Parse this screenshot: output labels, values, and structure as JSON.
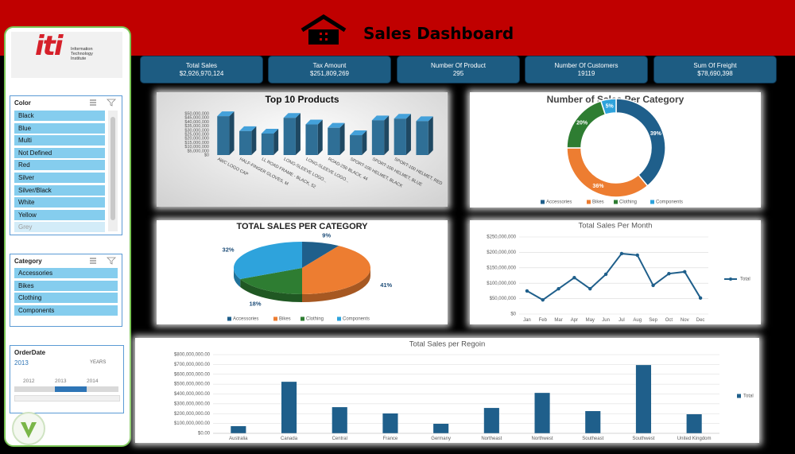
{
  "header": {
    "title": "Sales Dashboard"
  },
  "kpis": [
    {
      "label": "Total Sales",
      "value": "$2,926,970,124"
    },
    {
      "label": "Tax Amount",
      "value": "$251,809,269"
    },
    {
      "label": "Number Of Product",
      "value": "295"
    },
    {
      "label": "Number Of Customers",
      "value": "19119"
    },
    {
      "label": "Sum Of Freight",
      "value": "$78,690,398"
    }
  ],
  "logo": {
    "mark": "iti",
    "text": "Information Technology Institute"
  },
  "slicers": [
    {
      "title": "Color",
      "items": [
        "Black",
        "Blue",
        "Multi",
        "Not Defined",
        "Red",
        "Silver",
        "Silver/Black",
        "White",
        "Yellow",
        "Grey"
      ]
    },
    {
      "title": "Category",
      "items": [
        "Accessories",
        "Bikes",
        "Clothing",
        "Components"
      ]
    }
  ],
  "timeline": {
    "title": "OrderDate",
    "selected": "2013",
    "level": "YEARS",
    "years": [
      "2012",
      "2013",
      "2014"
    ]
  },
  "chart_data": [
    {
      "type": "bar",
      "title": "Top 10 Products",
      "categories": [
        "AWC LOGO CAP",
        "HALF-FINGER GLOVES, M",
        "LL ROAD FRAME - BLACK, 52",
        "LONG-SLEEVE LOGO...",
        "LONG-SLEEVE LOGO...",
        "ROAD-250 BLACK, 44",
        "SPORT-100 HELMET, BLACK",
        "SPORT-100 HELMET, BLUE",
        "SPORT-100 HELMET, RED",
        null
      ],
      "values": [
        47000000,
        29000000,
        26000000,
        45000000,
        37000000,
        33000000,
        24000000,
        42000000,
        44000000,
        41000000
      ],
      "color": "#2f6f96",
      "ylim": [
        0,
        50000000
      ],
      "yticks": [
        {
          "value": 0,
          "label": "$0"
        },
        {
          "value": 5000000,
          "label": "$5,000,000"
        },
        {
          "value": 10000000,
          "label": "$10,000,000"
        },
        {
          "value": 15000000,
          "label": "$15,000,000"
        },
        {
          "value": 20000000,
          "label": "$20,000,000"
        },
        {
          "value": 25000000,
          "label": "$25,000,000"
        },
        {
          "value": 30000000,
          "label": "$30,000,000"
        },
        {
          "value": 35000000,
          "label": "$35,000,000"
        },
        {
          "value": 40000000,
          "label": "$40,000,000"
        },
        {
          "value": 45000000,
          "label": "$45,000,000"
        },
        {
          "value": 50000000,
          "label": "$50,000,000"
        }
      ],
      "grid": false
    },
    {
      "type": "donut",
      "title": "Number of Sales Per Category",
      "categories": [
        "Accessories",
        "Bikes",
        "Clothing",
        "Components"
      ],
      "values": [
        39,
        36,
        20,
        5
      ],
      "value_labels": [
        "39%",
        "36%",
        "20%",
        "5%"
      ],
      "colors": [
        "#1f5f8b",
        "#ed7d31",
        "#2e7d32",
        "#2ea3dc"
      ],
      "legend": "bottom"
    },
    {
      "type": "pie",
      "title": "TOTAL SALES PER CATEGORY",
      "categories": [
        "Accessories",
        "Bikes",
        "Clothing",
        "Components"
      ],
      "values": [
        9,
        41,
        18,
        32
      ],
      "value_labels": [
        "9%",
        "41%",
        "18%",
        "32%"
      ],
      "colors": [
        "#1f5f8b",
        "#ed7d31",
        "#2e7d32",
        "#2ea3dc"
      ],
      "legend": "bottom"
    },
    {
      "type": "line",
      "title": "Total Sales Per Month",
      "categories": [
        "Jan",
        "Feb",
        "Mar",
        "Apr",
        "May",
        "Jun",
        "Jul",
        "Aug",
        "Sep",
        "Oct",
        "Nov",
        "Dec"
      ],
      "series": [
        {
          "name": "Total",
          "color": "#1f5f8b",
          "values": [
            75000000,
            46000000,
            82000000,
            118000000,
            82000000,
            129000000,
            196000000,
            191000000,
            93000000,
            131000000,
            137000000,
            52000000
          ]
        }
      ],
      "ylim": [
        0,
        250000000
      ],
      "yticks": [
        {
          "value": 0,
          "label": "$0"
        },
        {
          "value": 50000000,
          "label": "$50,000,000"
        },
        {
          "value": 100000000,
          "label": "$100,000,000"
        },
        {
          "value": 150000000,
          "label": "$150,000,000"
        },
        {
          "value": 200000000,
          "label": "$200,000,000"
        },
        {
          "value": 250000000,
          "label": "$250,000,000"
        }
      ],
      "grid": true,
      "legend": "right"
    },
    {
      "type": "bar",
      "title": "Total Sales per Regoin",
      "categories": [
        "Australia",
        "Canada",
        "Central",
        "France",
        "Germany",
        "Northeast",
        "Northwest",
        "Southeast",
        "Southwest",
        "United Kingdom"
      ],
      "series": [
        {
          "name": "Total",
          "color": "#1f5f8b",
          "values": [
            73000000,
            524000000,
            266000000,
            202000000,
            97000000,
            258000000,
            411000000,
            226000000,
            694000000,
            194000000
          ]
        }
      ],
      "ylim": [
        0,
        800000000
      ],
      "yticks": [
        {
          "value": 0,
          "label": "$0.00"
        },
        {
          "value": 100000000,
          "label": "$100,000,000.00"
        },
        {
          "value": 200000000,
          "label": "$200,000,000.00"
        },
        {
          "value": 300000000,
          "label": "$300,000,000.00"
        },
        {
          "value": 400000000,
          "label": "$400,000,000.00"
        },
        {
          "value": 500000000,
          "label": "$500,000,000.00"
        },
        {
          "value": 600000000,
          "label": "$600,000,000.00"
        },
        {
          "value": 700000000,
          "label": "$700,000,000.00"
        },
        {
          "value": 800000000,
          "label": "$800,000,000.00"
        }
      ],
      "grid": true,
      "legend": "right"
    }
  ]
}
